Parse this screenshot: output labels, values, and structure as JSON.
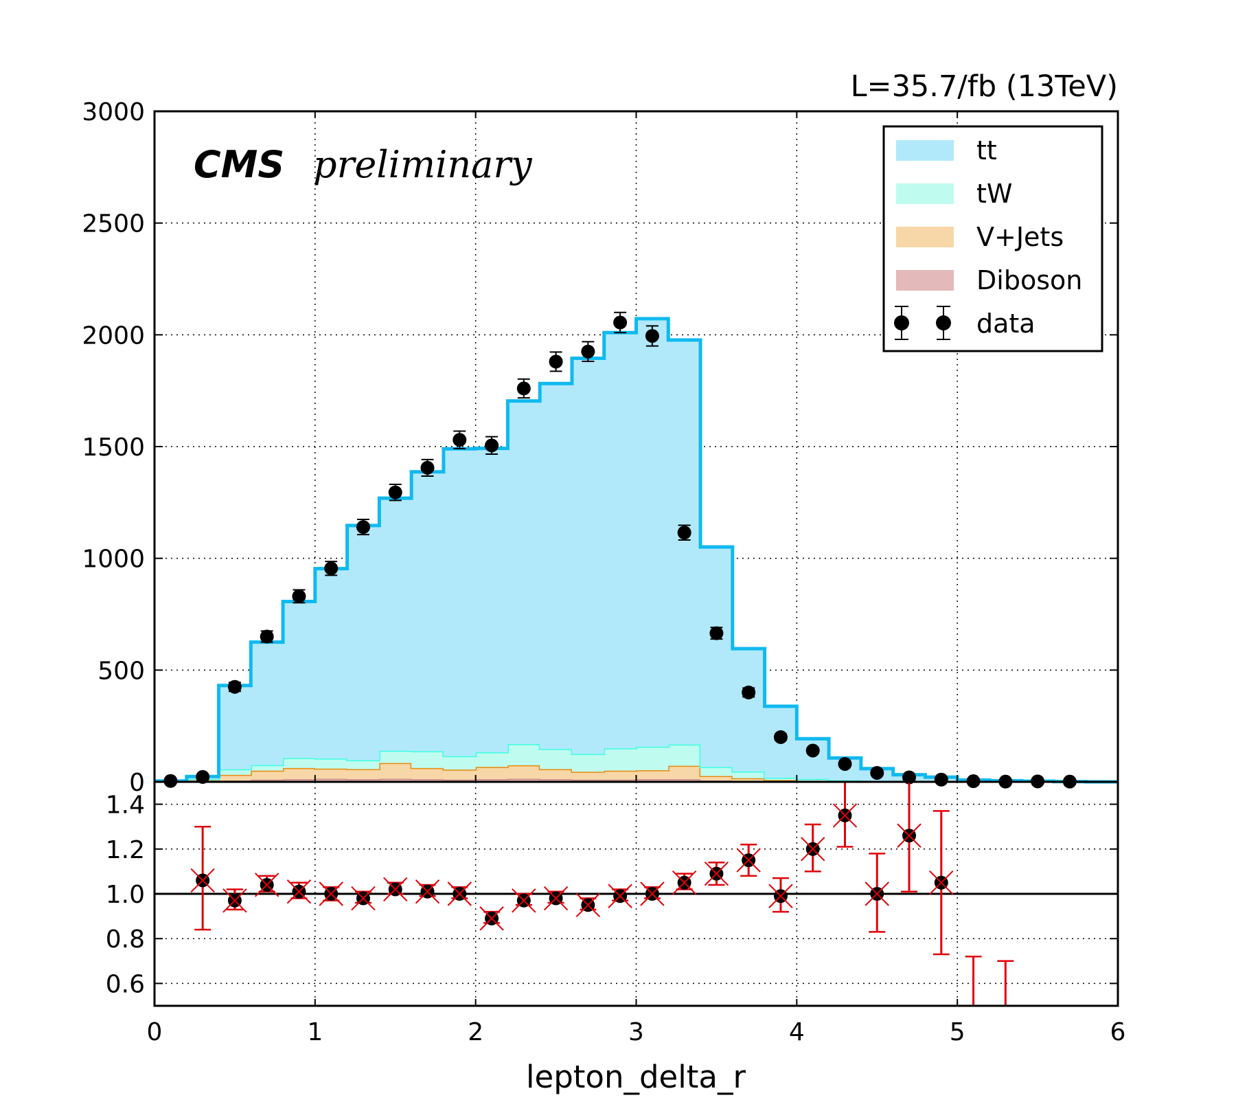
{
  "chart_data": {
    "type": "bar",
    "subtype": "stacked step histogram with data points and ratio panel",
    "header_right": "L=35.7/fb (13TeV)",
    "cms_label": "CMS",
    "cms_sublabel": "preliminary",
    "xlabel": "lepton_delta_r",
    "xlim": [
      0,
      6
    ],
    "ylim": [
      0,
      3000
    ],
    "ratio_ylim": [
      0.5,
      1.5
    ],
    "x_ticks": [
      "0",
      "1",
      "2",
      "3",
      "4",
      "5",
      "6"
    ],
    "y_ticks": [
      "0",
      "500",
      "1000",
      "1500",
      "2000",
      "2500",
      "3000"
    ],
    "ratio_y_ticks": [
      "0.6",
      "0.8",
      "1.0",
      "1.2",
      "1.4"
    ],
    "grid": true,
    "legend_position": "top-right",
    "bin_edges": [
      0.0,
      0.2,
      0.4,
      0.6,
      0.8,
      1.0,
      1.2,
      1.4,
      1.6,
      1.8,
      2.0,
      2.2,
      2.4,
      2.6,
      2.8,
      3.0,
      3.2,
      3.4,
      3.6,
      3.8,
      4.0,
      4.2,
      4.4,
      4.6,
      4.8,
      5.0,
      5.2,
      5.4,
      5.6,
      5.8
    ],
    "series": [
      {
        "name": "Diboson",
        "color": "#e3b9b9",
        "edge": "#c98a8a",
        "values": [
          0,
          2,
          6,
          10,
          12,
          14,
          12,
          14,
          12,
          10,
          12,
          14,
          12,
          10,
          10,
          12,
          12,
          6,
          4,
          2,
          2,
          1,
          1,
          0,
          0,
          0,
          0,
          0,
          0
        ]
      },
      {
        "name": "V+Jets",
        "color": "#f7d7a7",
        "edge": "#e8890c",
        "values": [
          2,
          5,
          25,
          40,
          50,
          45,
          45,
          70,
          50,
          45,
          55,
          60,
          45,
          35,
          40,
          40,
          60,
          20,
          12,
          6,
          3,
          2,
          1,
          1,
          0,
          0,
          0,
          0,
          0
        ]
      },
      {
        "name": "tW",
        "color": "#c0fbef",
        "edge": "#3dffe0",
        "values": [
          1,
          5,
          25,
          25,
          45,
          45,
          40,
          55,
          75,
          60,
          65,
          95,
          90,
          80,
          100,
          105,
          95,
          40,
          30,
          10,
          8,
          4,
          2,
          1,
          1,
          0,
          0,
          0,
          0
        ]
      },
      {
        "name": "tt",
        "color": "#b1e9fb",
        "edge": "#10b9ef",
        "values": [
          1,
          12,
          375,
          550,
          700,
          850,
          1050,
          1130,
          1250,
          1375,
          1360,
          1535,
          1635,
          1770,
          1860,
          1915,
          1810,
          985,
          550,
          320,
          180,
          100,
          55,
          30,
          20,
          8,
          5,
          3,
          1
        ]
      }
    ],
    "data": {
      "name": "data",
      "x": [
        0.1,
        0.3,
        0.5,
        0.7,
        0.9,
        1.1,
        1.3,
        1.5,
        1.7,
        1.9,
        2.1,
        2.3,
        2.5,
        2.7,
        2.9,
        3.1,
        3.3,
        3.5,
        3.7,
        3.9,
        4.1,
        4.3,
        4.5,
        4.7,
        4.9,
        5.1,
        5.3,
        5.5,
        5.7
      ],
      "y": [
        4,
        22,
        425,
        650,
        830,
        955,
        1140,
        1295,
        1405,
        1530,
        1505,
        1760,
        1880,
        1925,
        2055,
        1995,
        1115,
        665,
        400,
        200,
        140,
        80,
        40,
        20,
        10,
        3,
        1,
        2,
        1
      ],
      "yerr": [
        2,
        5,
        20,
        25,
        29,
        31,
        34,
        36,
        37,
        39,
        39,
        42,
        43,
        44,
        45,
        45,
        33,
        26,
        20,
        14,
        12,
        9,
        6,
        4,
        3,
        2,
        1,
        1,
        1
      ]
    },
    "ratio": {
      "x": [
        0.3,
        0.5,
        0.7,
        0.9,
        1.1,
        1.3,
        1.5,
        1.7,
        1.9,
        2.1,
        2.3,
        2.5,
        2.7,
        2.9,
        3.1,
        3.3,
        3.5,
        3.7,
        3.9,
        4.1,
        4.3,
        4.5,
        4.7,
        4.9,
        5.1,
        5.3
      ],
      "y": [
        1.06,
        0.97,
        1.04,
        1.01,
        1.0,
        0.98,
        1.02,
        1.01,
        1.0,
        0.89,
        0.97,
        0.98,
        0.95,
        0.99,
        1.0,
        1.05,
        1.09,
        1.15,
        0.99,
        1.2,
        1.35,
        1.0,
        1.26,
        1.05,
        0.35,
        0.1
      ],
      "err_low": [
        0.22,
        0.04,
        0.03,
        0.03,
        0.03,
        0.02,
        0.02,
        0.02,
        0.02,
        0.02,
        0.02,
        0.02,
        0.02,
        0.02,
        0.02,
        0.03,
        0.05,
        0.07,
        0.07,
        0.1,
        0.14,
        0.17,
        0.25,
        0.32,
        0.3,
        0.3
      ],
      "err_high": [
        0.24,
        0.05,
        0.04,
        0.04,
        0.03,
        0.03,
        0.03,
        0.03,
        0.03,
        0.03,
        0.03,
        0.03,
        0.03,
        0.03,
        0.03,
        0.04,
        0.05,
        0.07,
        0.08,
        0.11,
        0.15,
        0.18,
        0.3,
        0.32,
        0.37,
        0.6
      ],
      "reference_line": 1.0,
      "ratio_color": "#e0000a"
    }
  }
}
